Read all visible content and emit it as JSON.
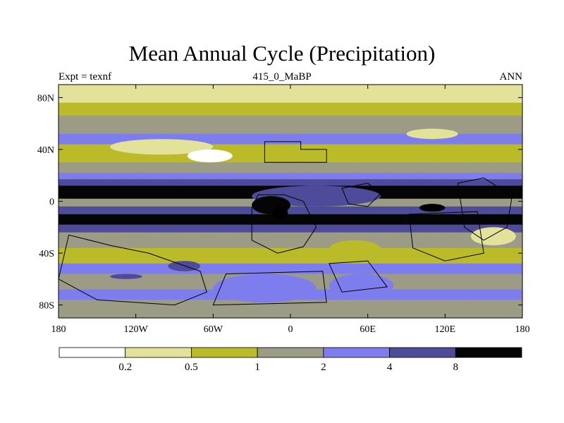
{
  "title": "Mean Annual Cycle (Precipitation)",
  "subtitle_left": "Expt = texnf",
  "subtitle_center": "415_0_MaBP",
  "subtitle_right": "ANN",
  "map": {
    "projection": "cylindrical-equidistant",
    "lon_range": [
      -180,
      180
    ],
    "lat_range": [
      -90,
      90
    ],
    "lat_ticks": [
      {
        "value": 80,
        "label": "80N"
      },
      {
        "value": 40,
        "label": "40N"
      },
      {
        "value": 0,
        "label": "0"
      },
      {
        "value": -40,
        "label": "40S"
      },
      {
        "value": -80,
        "label": "80S"
      }
    ],
    "lon_ticks": [
      {
        "value": -180,
        "label": "180"
      },
      {
        "value": -120,
        "label": "120W"
      },
      {
        "value": -60,
        "label": "60W"
      },
      {
        "value": 0,
        "label": "0"
      },
      {
        "value": 60,
        "label": "60E"
      },
      {
        "value": 120,
        "label": "120E"
      },
      {
        "value": 180,
        "label": "180"
      }
    ],
    "bands": [
      {
        "lat_top": 90,
        "lat_bottom": 76,
        "level": 1
      },
      {
        "lat_top": 76,
        "lat_bottom": 66,
        "level": 2
      },
      {
        "lat_top": 66,
        "lat_bottom": 52,
        "level": 3
      },
      {
        "lat_top": 52,
        "lat_bottom": 44,
        "level": 4
      },
      {
        "lat_top": 44,
        "lat_bottom": 30,
        "level": 2
      },
      {
        "lat_top": 30,
        "lat_bottom": 22,
        "level": 3
      },
      {
        "lat_top": 22,
        "lat_bottom": 17,
        "level": 4
      },
      {
        "lat_top": 17,
        "lat_bottom": 12,
        "level": 5
      },
      {
        "lat_top": 12,
        "lat_bottom": 2,
        "level": 6
      },
      {
        "lat_top": 2,
        "lat_bottom": -4,
        "level": 3
      },
      {
        "lat_top": -4,
        "lat_bottom": -10,
        "level": 5
      },
      {
        "lat_top": -10,
        "lat_bottom": -18,
        "level": 6
      },
      {
        "lat_top": -18,
        "lat_bottom": -24,
        "level": 5
      },
      {
        "lat_top": -24,
        "lat_bottom": -36,
        "level": 3
      },
      {
        "lat_top": -36,
        "lat_bottom": -48,
        "level": 2
      },
      {
        "lat_top": -48,
        "lat_bottom": -56,
        "level": 4
      },
      {
        "lat_top": -56,
        "lat_bottom": -68,
        "level": 3
      },
      {
        "lat_top": -68,
        "lat_bottom": -76,
        "level": 4
      },
      {
        "lat_top": -76,
        "lat_bottom": -90,
        "level": 3
      }
    ],
    "patches": [
      {
        "lon": [
          -140,
          -60
        ],
        "lat": [
          48,
          36
        ],
        "level": 1
      },
      {
        "lon": [
          -80,
          -45
        ],
        "lat": [
          40,
          30
        ],
        "level": 0
      },
      {
        "lon": [
          90,
          130
        ],
        "lat": [
          56,
          48
        ],
        "level": 1
      },
      {
        "lon": [
          -30,
          70
        ],
        "lat": [
          12,
          -4
        ],
        "level": 5
      },
      {
        "lon": [
          -30,
          0
        ],
        "lat": [
          4,
          -10
        ],
        "level": 6
      },
      {
        "lon": [
          -14,
          -2
        ],
        "lat": [
          -4,
          -14
        ],
        "level": 7
      },
      {
        "lon": [
          100,
          120
        ],
        "lat": [
          -2,
          -8
        ],
        "level": 7
      },
      {
        "lon": [
          -95,
          -70
        ],
        "lat": [
          -46,
          -54
        ],
        "level": 5
      },
      {
        "lon": [
          -140,
          -115
        ],
        "lat": [
          -56,
          -60
        ],
        "level": 5
      },
      {
        "lon": [
          30,
          70
        ],
        "lat": [
          -30,
          -44
        ],
        "level": 2
      },
      {
        "lon": [
          140,
          175
        ],
        "lat": [
          -20,
          -34
        ],
        "level": 1
      },
      {
        "lon": [
          -60,
          20
        ],
        "lat": [
          -56,
          -78
        ],
        "level": 4
      },
      {
        "lon": [
          30,
          80
        ],
        "lat": [
          -56,
          -74
        ],
        "level": 4
      }
    ],
    "land_outlines": [
      [
        [
          -20,
          46
        ],
        [
          8,
          46
        ],
        [
          8,
          40
        ],
        [
          28,
          40
        ],
        [
          28,
          30
        ],
        [
          -20,
          30
        ]
      ],
      [
        [
          -25,
          5
        ],
        [
          -5,
          5
        ],
        [
          10,
          0
        ],
        [
          20,
          -20
        ],
        [
          10,
          -35
        ],
        [
          -10,
          -40
        ],
        [
          -30,
          -30
        ],
        [
          -30,
          -5
        ]
      ],
      [
        [
          40,
          10
        ],
        [
          60,
          14
        ],
        [
          70,
          6
        ],
        [
          60,
          -4
        ],
        [
          45,
          -2
        ]
      ],
      [
        [
          130,
          14
        ],
        [
          150,
          18
        ],
        [
          172,
          4
        ],
        [
          168,
          -20
        ],
        [
          150,
          -30
        ],
        [
          135,
          -20
        ]
      ],
      [
        [
          92,
          -10
        ],
        [
          145,
          -8
        ],
        [
          150,
          -40
        ],
        [
          120,
          -46
        ],
        [
          95,
          -36
        ]
      ],
      [
        [
          -172,
          -26
        ],
        [
          -140,
          -34
        ],
        [
          -110,
          -40
        ],
        [
          -70,
          -54
        ],
        [
          -65,
          -70
        ],
        [
          -90,
          -80
        ],
        [
          -150,
          -76
        ],
        [
          -180,
          -60
        ]
      ],
      [
        [
          -50,
          -56
        ],
        [
          25,
          -54
        ],
        [
          28,
          -78
        ],
        [
          -60,
          -80
        ]
      ],
      [
        [
          30,
          -48
        ],
        [
          60,
          -46
        ],
        [
          75,
          -66
        ],
        [
          40,
          -70
        ]
      ]
    ]
  },
  "colorbar": {
    "colors": [
      "#ffffff",
      "#e3e29a",
      "#bbbb2a",
      "#9b9b86",
      "#7e7ded",
      "#4e4b9b",
      "#050505"
    ],
    "labels": [
      "0.2",
      "0.5",
      "1",
      "2",
      "4",
      "8"
    ]
  }
}
